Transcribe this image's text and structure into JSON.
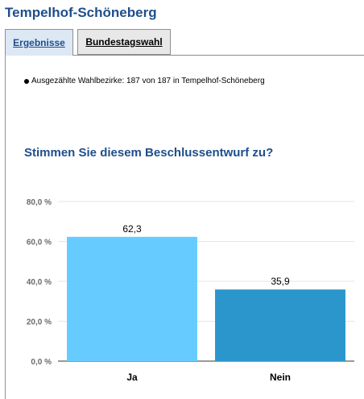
{
  "header": {
    "title": "Tempelhof-Schöneberg"
  },
  "tabs": [
    {
      "label": "Ergebnisse",
      "active": true
    },
    {
      "label": "Bundestagswahl",
      "active": false
    }
  ],
  "status": {
    "text": "Ausgezählte Wahlbezirke: 187 von 187 in Tempelhof-Schöneberg"
  },
  "question": "Stimmen Sie diesem Beschlussentwurf zu?",
  "chart_data": {
    "type": "bar",
    "categories": [
      "Ja",
      "Nein"
    ],
    "values": [
      62.3,
      35.9
    ],
    "value_labels": [
      "62,3",
      "35,9"
    ],
    "ylim": [
      0,
      80
    ],
    "yticks": [
      0,
      20,
      40,
      60,
      80
    ],
    "ytick_labels": [
      "0,0 %",
      "20,0 %",
      "40,0 %",
      "60,0 %",
      "80,0 %"
    ],
    "colors": [
      "#66ccff",
      "#2b96cc"
    ],
    "grid": true,
    "title": "",
    "xlabel": "",
    "ylabel": ""
  }
}
